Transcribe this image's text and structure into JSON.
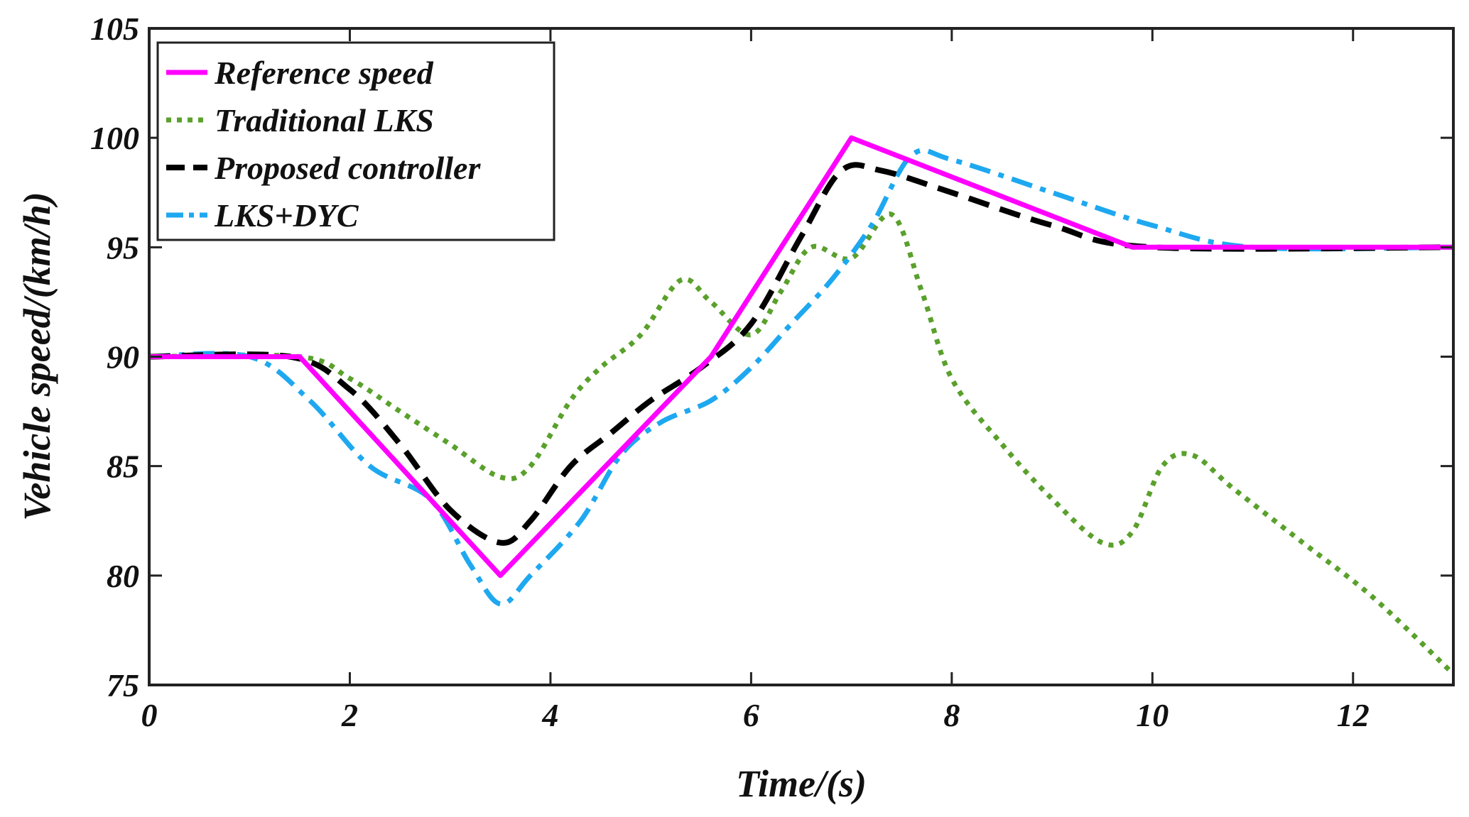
{
  "chart_data": {
    "type": "line",
    "title": "",
    "xlabel": "Time/(s)",
    "ylabel": "Vehicle speed/(km/h)",
    "xlim": [
      0,
      13
    ],
    "ylim": [
      75,
      105
    ],
    "xticks": [
      0,
      2,
      4,
      6,
      8,
      10,
      12
    ],
    "yticks": [
      75,
      80,
      85,
      90,
      95,
      100,
      105
    ],
    "grid": false,
    "legend_position": "top-left",
    "series": [
      {
        "name": "Reference speed",
        "color": "#FF00FF",
        "style": "solid",
        "x": [
          0,
          1.5,
          3.5,
          5.6,
          7.0,
          9.8,
          13
        ],
        "y": [
          90,
          90,
          80,
          90,
          100,
          95,
          95
        ]
      },
      {
        "name": "Traditional LKS",
        "color": "#5AA02C",
        "style": "dotted",
        "x": [
          0,
          1.5,
          2.0,
          2.5,
          3.0,
          3.5,
          3.8,
          4.2,
          4.5,
          4.9,
          5.3,
          5.6,
          6.0,
          6.3,
          6.6,
          7.0,
          7.4,
          7.7,
          8.0,
          8.5,
          9.0,
          9.5,
          9.8,
          10.1,
          10.4,
          10.8,
          11.5,
          12.2,
          13.0
        ],
        "y": [
          90,
          90,
          89,
          87.5,
          86,
          84.5,
          85,
          88,
          89.5,
          91,
          93.5,
          92.5,
          91,
          93,
          95,
          94.5,
          96.5,
          93,
          89,
          86,
          83.5,
          81.5,
          82,
          85,
          85.5,
          84,
          81.5,
          79,
          75.5
        ]
      },
      {
        "name": "Proposed controller",
        "color": "#000000",
        "style": "dashed",
        "x": [
          0,
          1.4,
          2.0,
          2.5,
          3.0,
          3.5,
          3.8,
          4.2,
          4.6,
          5.0,
          5.5,
          6.0,
          6.5,
          6.9,
          7.3,
          8.0,
          9.0,
          10.0,
          13.0
        ],
        "y": [
          90,
          90,
          88.5,
          86,
          83,
          81.5,
          82.5,
          85,
          86.5,
          88,
          89.5,
          91.5,
          95.5,
          98.5,
          98.5,
          97.5,
          96,
          95,
          95
        ]
      },
      {
        "name": "LKS+DYC",
        "color": "#1EA8F0",
        "style": "dashdot",
        "x": [
          0,
          1.0,
          1.6,
          2.2,
          2.8,
          3.2,
          3.5,
          3.8,
          4.3,
          4.7,
          5.1,
          5.6,
          6.0,
          6.4,
          6.8,
          7.2,
          7.6,
          8.0,
          9.0,
          10.0,
          11.0,
          13.0
        ],
        "y": [
          90,
          90,
          88,
          85,
          83.5,
          80.5,
          78.7,
          80,
          82.5,
          85.5,
          87,
          88,
          89.5,
          91.5,
          93.5,
          96,
          99.2,
          99,
          97.5,
          96,
          95,
          95
        ]
      }
    ]
  }
}
